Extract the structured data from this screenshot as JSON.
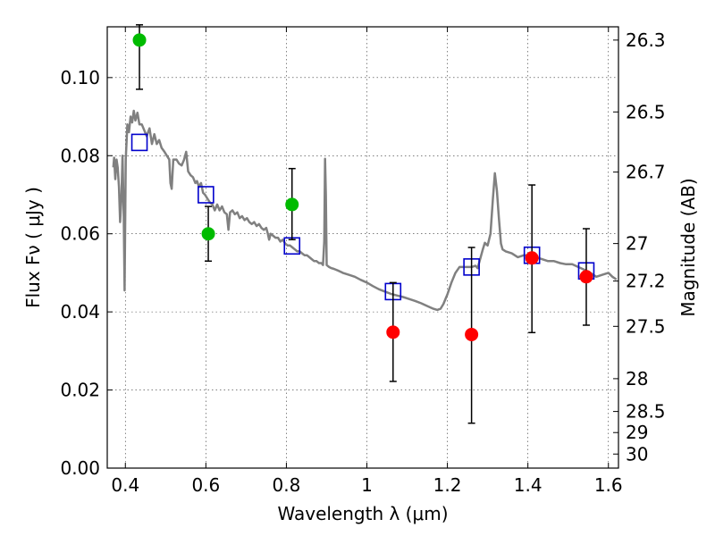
{
  "chart_data": {
    "type": "scatter",
    "xlabel": "Wavelength  λ (μm)",
    "ylabel": "Flux  Fν  ( μJy )",
    "ylabel_right": "Magnitude (AB)",
    "xlim": [
      0.355,
      1.625
    ],
    "ylim": [
      0.0,
      0.113
    ],
    "grid": true,
    "x_ticks": [
      0.4,
      0.6,
      0.8,
      1.0,
      1.2,
      1.4,
      1.6
    ],
    "x_tick_labels": [
      "0.4",
      "0.6",
      "0.8",
      "1",
      "1.2",
      "1.4",
      "1.6"
    ],
    "y_ticks": [
      0.0,
      0.02,
      0.04,
      0.06,
      0.08,
      0.1
    ],
    "y_tick_labels": [
      "0.00",
      "0.02",
      "0.04",
      "0.06",
      "0.08",
      "0.10"
    ],
    "right_ticks": [
      {
        "label": "26.3",
        "flux": 0.1096
      },
      {
        "label": "26.5",
        "flux": 0.0912
      },
      {
        "label": "26.7",
        "flux": 0.0758
      },
      {
        "label": "27",
        "flux": 0.0575
      },
      {
        "label": "27.2",
        "flux": 0.0479
      },
      {
        "label": "27.5",
        "flux": 0.0363
      },
      {
        "label": "28",
        "flux": 0.0229
      },
      {
        "label": "28.5",
        "flux": 0.0145
      },
      {
        "label": "29",
        "flux": 0.0091
      },
      {
        "label": "30",
        "flux": 0.0036
      }
    ],
    "observed": [
      {
        "x": 0.435,
        "y": 0.1096,
        "yerr_low": 0.097,
        "yerr_high": 0.1135,
        "color": "#00bb00"
      },
      {
        "x": 0.606,
        "y": 0.06,
        "yerr_low": 0.053,
        "yerr_high": 0.067,
        "color": "#00bb00"
      },
      {
        "x": 0.814,
        "y": 0.0675,
        "yerr_low": 0.0585,
        "yerr_high": 0.0767,
        "color": "#00bb00"
      },
      {
        "x": 1.065,
        "y": 0.0348,
        "yerr_low": 0.0222,
        "yerr_high": 0.0475,
        "color": "#ff0000"
      },
      {
        "x": 1.26,
        "y": 0.0342,
        "yerr_low": 0.0115,
        "yerr_high": 0.0565,
        "color": "#ff0000"
      },
      {
        "x": 1.41,
        "y": 0.0538,
        "yerr_low": 0.0347,
        "yerr_high": 0.0725,
        "color": "#ff0000"
      },
      {
        "x": 1.545,
        "y": 0.049,
        "yerr_low": 0.0366,
        "yerr_high": 0.0613,
        "color": "#ff0000"
      }
    ],
    "model_points": [
      {
        "x": 0.435,
        "y": 0.0834
      },
      {
        "x": 0.6,
        "y": 0.07
      },
      {
        "x": 0.814,
        "y": 0.0569
      },
      {
        "x": 1.065,
        "y": 0.0452
      },
      {
        "x": 1.26,
        "y": 0.0515
      },
      {
        "x": 1.41,
        "y": 0.0545
      },
      {
        "x": 1.545,
        "y": 0.0505
      }
    ],
    "model_color": "#0000cc",
    "sed_color": "#808080",
    "sed": [
      [
        0.37,
        0.077
      ],
      [
        0.372,
        0.0795
      ],
      [
        0.375,
        0.074
      ],
      [
        0.378,
        0.079
      ],
      [
        0.381,
        0.077
      ],
      [
        0.384,
        0.072
      ],
      [
        0.387,
        0.063
      ],
      [
        0.39,
        0.069
      ],
      [
        0.393,
        0.08
      ],
      [
        0.396,
        0.064
      ],
      [
        0.398,
        0.0455
      ],
      [
        0.401,
        0.079
      ],
      [
        0.405,
        0.088
      ],
      [
        0.409,
        0.086
      ],
      [
        0.413,
        0.09
      ],
      [
        0.417,
        0.0885
      ],
      [
        0.421,
        0.0915
      ],
      [
        0.425,
        0.089
      ],
      [
        0.43,
        0.091
      ],
      [
        0.435,
        0.088
      ],
      [
        0.441,
        0.088
      ],
      [
        0.447,
        0.0865
      ],
      [
        0.453,
        0.085
      ],
      [
        0.46,
        0.087
      ],
      [
        0.466,
        0.083
      ],
      [
        0.472,
        0.0855
      ],
      [
        0.478,
        0.083
      ],
      [
        0.484,
        0.084
      ],
      [
        0.49,
        0.082
      ],
      [
        0.497,
        0.081
      ],
      [
        0.503,
        0.08
      ],
      [
        0.509,
        0.079
      ],
      [
        0.512,
        0.073
      ],
      [
        0.515,
        0.0715
      ],
      [
        0.519,
        0.079
      ],
      [
        0.527,
        0.079
      ],
      [
        0.533,
        0.078
      ],
      [
        0.54,
        0.0775
      ],
      [
        0.546,
        0.079
      ],
      [
        0.551,
        0.081
      ],
      [
        0.556,
        0.076
      ],
      [
        0.562,
        0.075
      ],
      [
        0.568,
        0.0745
      ],
      [
        0.574,
        0.073
      ],
      [
        0.578,
        0.0735
      ],
      [
        0.583,
        0.072
      ],
      [
        0.588,
        0.073
      ],
      [
        0.593,
        0.0705
      ],
      [
        0.598,
        0.07
      ],
      [
        0.604,
        0.069
      ],
      [
        0.61,
        0.068
      ],
      [
        0.616,
        0.0675
      ],
      [
        0.622,
        0.066
      ],
      [
        0.628,
        0.0675
      ],
      [
        0.634,
        0.066
      ],
      [
        0.64,
        0.067
      ],
      [
        0.646,
        0.0655
      ],
      [
        0.652,
        0.065
      ],
      [
        0.656,
        0.061
      ],
      [
        0.66,
        0.0655
      ],
      [
        0.666,
        0.066
      ],
      [
        0.672,
        0.065
      ],
      [
        0.678,
        0.0655
      ],
      [
        0.684,
        0.064
      ],
      [
        0.69,
        0.0645
      ],
      [
        0.696,
        0.0635
      ],
      [
        0.702,
        0.064
      ],
      [
        0.708,
        0.063
      ],
      [
        0.714,
        0.0625
      ],
      [
        0.72,
        0.063
      ],
      [
        0.726,
        0.062
      ],
      [
        0.732,
        0.0625
      ],
      [
        0.738,
        0.0615
      ],
      [
        0.744,
        0.061
      ],
      [
        0.75,
        0.0615
      ],
      [
        0.754,
        0.06
      ],
      [
        0.757,
        0.0585
      ],
      [
        0.761,
        0.06
      ],
      [
        0.767,
        0.0595
      ],
      [
        0.773,
        0.059
      ],
      [
        0.779,
        0.059
      ],
      [
        0.785,
        0.058
      ],
      [
        0.791,
        0.0585
      ],
      [
        0.797,
        0.0575
      ],
      [
        0.803,
        0.057
      ],
      [
        0.809,
        0.057
      ],
      [
        0.815,
        0.0565
      ],
      [
        0.821,
        0.056
      ],
      [
        0.827,
        0.0555
      ],
      [
        0.833,
        0.0555
      ],
      [
        0.839,
        0.055
      ],
      [
        0.845,
        0.0545
      ],
      [
        0.851,
        0.0545
      ],
      [
        0.857,
        0.054
      ],
      [
        0.863,
        0.0535
      ],
      [
        0.869,
        0.053
      ],
      [
        0.875,
        0.053
      ],
      [
        0.881,
        0.0525
      ],
      [
        0.887,
        0.0525
      ],
      [
        0.891,
        0.052
      ],
      [
        0.894,
        0.058
      ],
      [
        0.896,
        0.0792
      ],
      [
        0.898,
        0.07
      ],
      [
        0.9,
        0.052
      ],
      [
        0.906,
        0.0515
      ],
      [
        0.912,
        0.0512
      ],
      [
        0.918,
        0.051
      ],
      [
        0.93,
        0.0505
      ],
      [
        0.94,
        0.05
      ],
      [
        0.955,
        0.0495
      ],
      [
        0.97,
        0.049
      ],
      [
        0.985,
        0.0482
      ],
      [
        1.0,
        0.0475
      ],
      [
        1.015,
        0.0466
      ],
      [
        1.03,
        0.0458
      ],
      [
        1.045,
        0.0452
      ],
      [
        1.06,
        0.0446
      ],
      [
        1.075,
        0.0442
      ],
      [
        1.09,
        0.0438
      ],
      [
        1.105,
        0.0433
      ],
      [
        1.12,
        0.0428
      ],
      [
        1.135,
        0.0422
      ],
      [
        1.15,
        0.0415
      ],
      [
        1.165,
        0.0408
      ],
      [
        1.175,
        0.0405
      ],
      [
        1.183,
        0.0408
      ],
      [
        1.19,
        0.042
      ],
      [
        1.2,
        0.0445
      ],
      [
        1.21,
        0.0475
      ],
      [
        1.22,
        0.05
      ],
      [
        1.23,
        0.0515
      ],
      [
        1.24,
        0.0515
      ],
      [
        1.25,
        0.0515
      ],
      [
        1.26,
        0.0515
      ],
      [
        1.27,
        0.0518
      ],
      [
        1.275,
        0.0512
      ],
      [
        1.28,
        0.053
      ],
      [
        1.288,
        0.056
      ],
      [
        1.293,
        0.0577
      ],
      [
        1.3,
        0.057
      ],
      [
        1.307,
        0.06
      ],
      [
        1.313,
        0.069
      ],
      [
        1.318,
        0.0755
      ],
      [
        1.323,
        0.071
      ],
      [
        1.328,
        0.064
      ],
      [
        1.333,
        0.0575
      ],
      [
        1.337,
        0.056
      ],
      [
        1.345,
        0.0555
      ],
      [
        1.36,
        0.055
      ],
      [
        1.375,
        0.054
      ],
      [
        1.39,
        0.0545
      ],
      [
        1.405,
        0.0545
      ],
      [
        1.42,
        0.054
      ],
      [
        1.435,
        0.0535
      ],
      [
        1.45,
        0.053
      ],
      [
        1.465,
        0.053
      ],
      [
        1.48,
        0.0525
      ],
      [
        1.495,
        0.0522
      ],
      [
        1.51,
        0.0522
      ],
      [
        1.525,
        0.0515
      ],
      [
        1.54,
        0.0508
      ],
      [
        1.555,
        0.05
      ],
      [
        1.57,
        0.049
      ],
      [
        1.585,
        0.0495
      ],
      [
        1.6,
        0.05
      ],
      [
        1.61,
        0.049
      ],
      [
        1.62,
        0.0483
      ]
    ]
  }
}
